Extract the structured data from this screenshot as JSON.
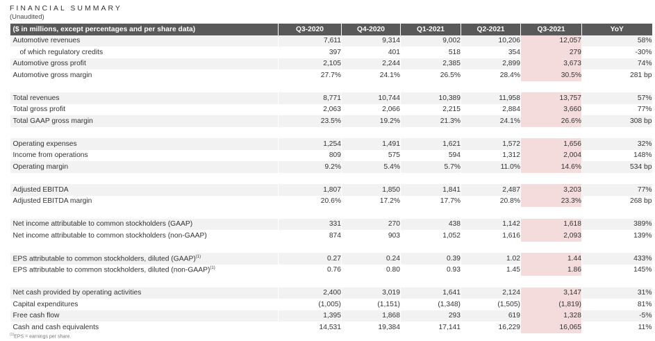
{
  "header": {
    "title": "FINANCIAL SUMMARY",
    "subtitle": "(Unaudited)"
  },
  "table": {
    "columns": [
      "($ in millions, except percentages and per share data)",
      "Q3-2020",
      "Q4-2020",
      "Q1-2021",
      "Q2-2021",
      "Q3-2021",
      "YoY"
    ],
    "rows": [
      {
        "label": "Automotive revenues",
        "values": [
          "7,611",
          "9,314",
          "9,002",
          "10,206",
          "12,057",
          "58%"
        ]
      },
      {
        "label": "of which regulatory credits",
        "values": [
          "397",
          "401",
          "518",
          "354",
          "279",
          "-30%"
        ]
      },
      {
        "label": "Automotive gross profit",
        "values": [
          "2,105",
          "2,244",
          "2,385",
          "2,899",
          "3,673",
          "74%"
        ]
      },
      {
        "label": "Automotive gross margin",
        "values": [
          "27.7%",
          "24.1%",
          "26.5%",
          "28.4%",
          "30.5%",
          "281 bp"
        ]
      },
      {
        "label": "Total revenues",
        "values": [
          "8,771",
          "10,744",
          "10,389",
          "11,958",
          "13,757",
          "57%"
        ]
      },
      {
        "label": "Total gross profit",
        "values": [
          "2,063",
          "2,066",
          "2,215",
          "2,884",
          "3,660",
          "77%"
        ]
      },
      {
        "label": "Total GAAP gross margin",
        "values": [
          "23.5%",
          "19.2%",
          "21.3%",
          "24.1%",
          "26.6%",
          "308 bp"
        ]
      },
      {
        "label": "Operating expenses",
        "values": [
          "1,254",
          "1,491",
          "1,621",
          "1,572",
          "1,656",
          "32%"
        ]
      },
      {
        "label": "Income from operations",
        "values": [
          "809",
          "575",
          "594",
          "1,312",
          "2,004",
          "148%"
        ]
      },
      {
        "label": "Operating margin",
        "values": [
          "9.2%",
          "5.4%",
          "5.7%",
          "11.0%",
          "14.6%",
          "534 bp"
        ]
      },
      {
        "label": "Adjusted EBITDA",
        "values": [
          "1,807",
          "1,850",
          "1,841",
          "2,487",
          "3,203",
          "77%"
        ]
      },
      {
        "label": "Adjusted EBITDA margin",
        "values": [
          "20.6%",
          "17.2%",
          "17.7%",
          "20.8%",
          "23.3%",
          "268 bp"
        ]
      },
      {
        "label": "Net income attributable to common stockholders (GAAP)",
        "values": [
          "331",
          "270",
          "438",
          "1,142",
          "1,618",
          "389%"
        ]
      },
      {
        "label": "Net income attributable to common stockholders (non-GAAP)",
        "values": [
          "874",
          "903",
          "1,052",
          "1,616",
          "2,093",
          "139%"
        ]
      },
      {
        "label": "EPS attributable to common stockholders, diluted (GAAP)",
        "sup": "(1)",
        "values": [
          "0.27",
          "0.24",
          "0.39",
          "1.02",
          "1.44",
          "433%"
        ]
      },
      {
        "label": "EPS attributable to common stockholders, diluted (non-GAAP)",
        "sup": "(1)",
        "values": [
          "0.76",
          "0.80",
          "0.93",
          "1.45",
          "1.86",
          "145%"
        ]
      },
      {
        "label": "Net cash provided by operating activities",
        "values": [
          "2,400",
          "3,019",
          "1,641",
          "2,124",
          "3,147",
          "31%"
        ]
      },
      {
        "label": "Capital expenditures",
        "values": [
          "(1,005)",
          "(1,151)",
          "(1,348)",
          "(1,505)",
          "(1,819)",
          "81%"
        ]
      },
      {
        "label": "Free cash flow",
        "values": [
          "1,395",
          "1,868",
          "293",
          "619",
          "1,328",
          "-5%"
        ]
      },
      {
        "label": "Cash and cash equivalents",
        "values": [
          "14,531",
          "19,384",
          "17,141",
          "16,229",
          "16,065",
          "11%"
        ]
      }
    ]
  },
  "footnote": {
    "marker": "(1)",
    "text": "EPS = earnings per share."
  },
  "colors": {
    "header_bg": "#595959",
    "row_shade": "#f2f2f2",
    "highlight": "#f4dcdc"
  }
}
